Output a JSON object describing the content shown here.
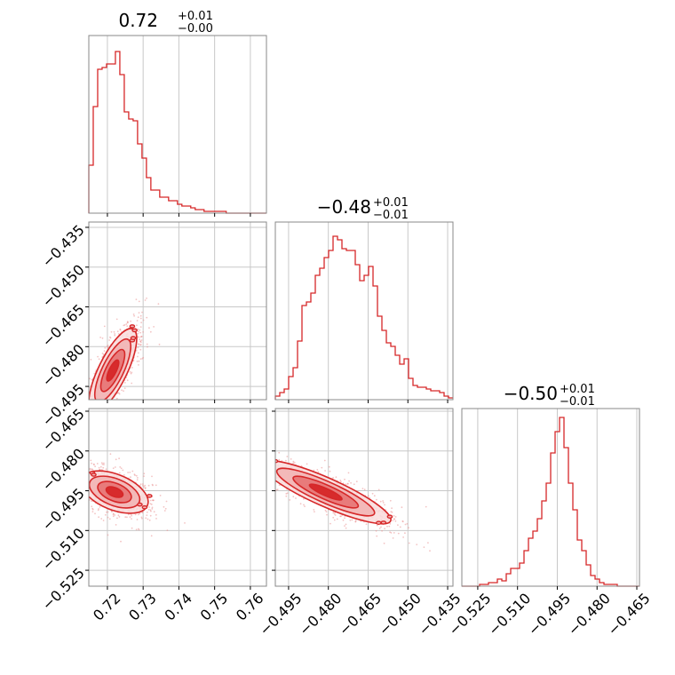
{
  "colors": {
    "accent": "#d62728",
    "grid": "#c8c8c8",
    "frame": "#888888",
    "background": "#ffffff"
  },
  "chart_data": {
    "type": "corner",
    "parameters": [
      {
        "range": [
          0.7148,
          0.7645
        ],
        "ticks": [
          0.72,
          0.73,
          0.74,
          0.75,
          0.76
        ],
        "tick_labels": [
          "0.72",
          "0.73",
          "0.74",
          "0.75",
          "0.76"
        ],
        "title": {
          "value": "0.72",
          "upper": "+0.01",
          "lower": "−0.00"
        }
      },
      {
        "range": [
          -0.5,
          -0.433
        ],
        "ticks": [
          -0.495,
          -0.48,
          -0.465,
          -0.45,
          -0.435
        ],
        "tick_labels": [
          "−0.495",
          "−0.480",
          "−0.465",
          "−0.450",
          "−0.435"
        ],
        "title": {
          "value": "−0.48",
          "upper": "+0.01",
          "lower": "−0.01"
        }
      },
      {
        "range": [
          -0.531,
          -0.464
        ],
        "ticks": [
          -0.525,
          -0.51,
          -0.495,
          -0.48,
          -0.465
        ],
        "tick_labels": [
          "−0.525",
          "−0.510",
          "−0.495",
          "−0.480",
          "−0.465"
        ],
        "title": {
          "value": "−0.50",
          "upper": "+0.01",
          "lower": "−0.01"
        }
      }
    ],
    "histograms": [
      {
        "parameter": 0,
        "bin_edges_start": 0.7148,
        "bin_width": 0.00124,
        "counts": [
          0.27,
          0.6,
          0.81,
          0.82,
          0.84,
          0.84,
          0.91,
          0.78,
          0.57,
          0.53,
          0.52,
          0.39,
          0.31,
          0.2,
          0.13,
          0.13,
          0.09,
          0.09,
          0.07,
          0.07,
          0.05,
          0.04,
          0.04,
          0.03,
          0.02,
          0.02,
          0.01,
          0.01,
          0.01,
          0.01,
          0.01,
          0.0,
          0.0,
          0.0,
          0.0,
          0.0,
          0.0,
          0.0,
          0.0,
          0.0
        ]
      },
      {
        "parameter": 1,
        "bin_edges_start": -0.5,
        "bin_width": 0.001675,
        "counts": [
          0.02,
          0.04,
          0.06,
          0.13,
          0.18,
          0.33,
          0.53,
          0.55,
          0.6,
          0.7,
          0.74,
          0.8,
          0.84,
          0.92,
          0.9,
          0.85,
          0.84,
          0.84,
          0.76,
          0.67,
          0.7,
          0.75,
          0.64,
          0.47,
          0.39,
          0.32,
          0.3,
          0.25,
          0.2,
          0.23,
          0.12,
          0.08,
          0.07,
          0.07,
          0.06,
          0.05,
          0.05,
          0.04,
          0.02,
          0.01
        ]
      },
      {
        "parameter": 2,
        "bin_edges_start": -0.531,
        "bin_width": 0.001675,
        "counts": [
          0.0,
          0.0,
          0.0,
          0.0,
          0.01,
          0.01,
          0.02,
          0.02,
          0.04,
          0.03,
          0.07,
          0.1,
          0.1,
          0.13,
          0.2,
          0.27,
          0.31,
          0.38,
          0.48,
          0.58,
          0.75,
          0.87,
          0.95,
          0.78,
          0.58,
          0.43,
          0.26,
          0.2,
          0.12,
          0.06,
          0.04,
          0.02,
          0.01,
          0.01,
          0.01,
          0.0,
          0.0,
          0.0,
          0.0,
          0.0
        ]
      }
    ],
    "pairs": [
      {
        "x_param": 0,
        "y_param": 1,
        "center": [
          0.7215,
          -0.489
        ],
        "direction": [
          1.0,
          2.55
        ],
        "sigma_major": [
          0.0037,
          0.0096
        ],
        "sigma_minor": 0.0034,
        "rotation_deg": -70
      },
      {
        "x_param": 0,
        "y_param": 2,
        "center": [
          0.722,
          -0.4955
        ],
        "sigma_x": 0.0042,
        "sigma_y": 0.0028,
        "correlation": -0.35
      },
      {
        "x_param": 1,
        "y_param": 2,
        "center": [
          -0.481,
          -0.4955
        ],
        "sigma_major": 0.0115,
        "sigma_minor": 0.0026,
        "slope": -0.32
      }
    ],
    "legend": "none",
    "grid": true
  }
}
